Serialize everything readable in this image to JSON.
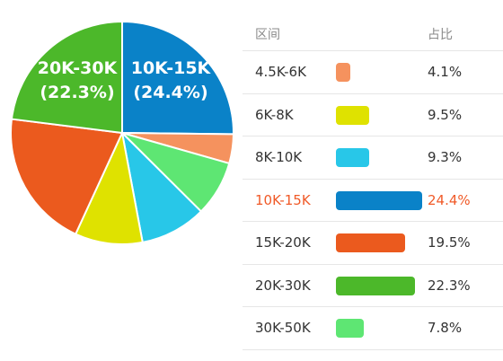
{
  "chart_data": {
    "type": "pie",
    "slices": [
      {
        "label": "4.5K-6K",
        "value": 4.1,
        "pct_text": "4.1%",
        "color": "#f5925e"
      },
      {
        "label": "6K-8K",
        "value": 9.5,
        "pct_text": "9.5%",
        "color": "#dfe200"
      },
      {
        "label": "8K-10K",
        "value": 9.3,
        "pct_text": "9.3%",
        "color": "#28c7e8"
      },
      {
        "label": "10K-15K",
        "value": 24.4,
        "pct_text": "24.4%",
        "color": "#0a82c8"
      },
      {
        "label": "15K-20K",
        "value": 19.5,
        "pct_text": "19.5%",
        "color": "#eb5a1e"
      },
      {
        "label": "20K-30K",
        "value": 22.3,
        "pct_text": "22.3%",
        "color": "#4cb82a"
      },
      {
        "label": "30K-50K",
        "value": 7.8,
        "pct_text": "7.8%",
        "color": "#5ee673"
      }
    ],
    "pie_labels": [
      {
        "name": "10K-15K",
        "line1": "10K-15K",
        "line2": "(24.4%)"
      },
      {
        "name": "20K-30K",
        "line1": "20K-30K",
        "line2": "(22.3%)"
      }
    ],
    "table_headers": {
      "range": "区间",
      "share": "占比"
    },
    "highlight": "10K-15K",
    "highlight_color": "#f05a28"
  }
}
